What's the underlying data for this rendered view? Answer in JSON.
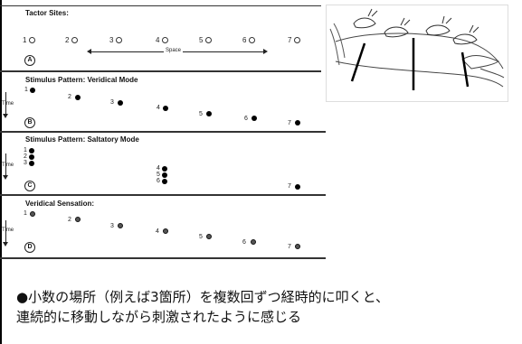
{
  "panels": {
    "A": {
      "title": "Tactor Sites:",
      "letter": "A",
      "sites": [
        "1",
        "2",
        "3",
        "4",
        "5",
        "6",
        "7"
      ],
      "space_label": "Space"
    },
    "B": {
      "title": "Stimulus Pattern: Veridical Mode",
      "letter": "B",
      "time_label": "Time",
      "labels": [
        "1",
        "2",
        "3",
        "4",
        "5",
        "6",
        "7"
      ]
    },
    "C": {
      "title": "Stimulus Pattern: Saltatory Mode",
      "letter": "C",
      "time_label": "Time",
      "left_labels": [
        "1",
        "2",
        "3"
      ],
      "mid_labels": [
        "4",
        "5",
        "6"
      ],
      "right_label": "7"
    },
    "D": {
      "title": "Veridical Sensation:",
      "letter": "D",
      "time_label": "Time",
      "labels": [
        "1",
        "2",
        "3",
        "4",
        "5",
        "6",
        "7"
      ]
    }
  },
  "caption": {
    "line1": "●小数の場所（例えば3箇所）を複数回ずつ経時的に叩くと、",
    "line2": "連続的に移動しながら刺激されたように感じる"
  }
}
